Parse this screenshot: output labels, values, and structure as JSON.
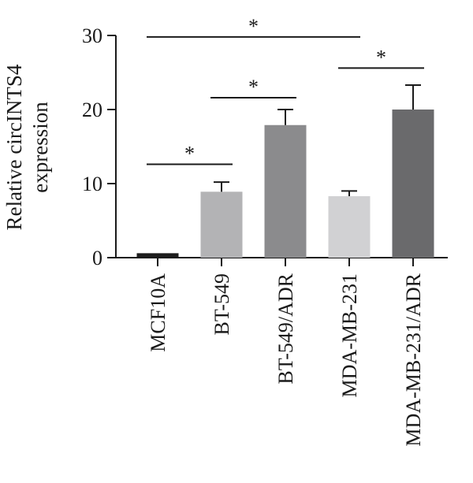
{
  "chart_data": {
    "type": "bar",
    "title": "",
    "xlabel": "",
    "ylabel_lines": [
      "Relative circINTS4",
      "expression"
    ],
    "ylim": [
      0,
      30
    ],
    "yticks": [
      0,
      10,
      20,
      30
    ],
    "categories": [
      "MCF10A",
      "BT-549",
      "BT-549/ADR",
      "MDA-MB-231",
      "MDA-MB-231/ADR"
    ],
    "values": [
      0.6,
      8.9,
      17.9,
      8.3,
      20.0
    ],
    "error": [
      0.0,
      1.3,
      2.1,
      0.7,
      3.3
    ],
    "bar_colors": [
      "#1c1c1c",
      "#b3b3b5",
      "#8b8b8d",
      "#d1d1d3",
      "#6a6a6c"
    ],
    "significance": [
      {
        "from": 0,
        "to": 1,
        "y": 12.6,
        "label": "*"
      },
      {
        "from": 1,
        "to": 2,
        "y": 21.6,
        "label": "*"
      },
      {
        "from": 3,
        "to": 4,
        "y": 25.6,
        "label": "*"
      },
      {
        "from": 0,
        "to": 3,
        "y": 29.8,
        "label": "*"
      }
    ]
  }
}
